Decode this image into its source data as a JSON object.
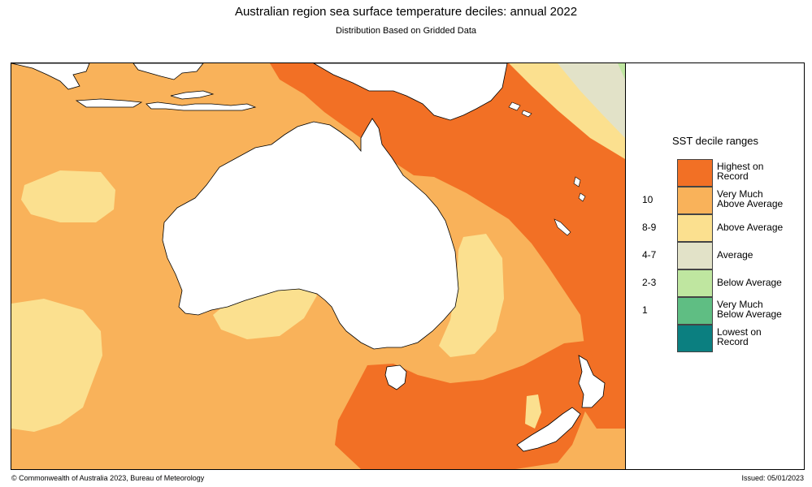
{
  "title": "Australian region sea surface temperature deciles:  annual 2022",
  "subtitle": "Distribution Based on Gridded Data",
  "legend": {
    "title": "SST decile ranges",
    "items": [
      {
        "num": "",
        "label_1": "Highest on",
        "label_2": "Record",
        "color": "#f27025"
      },
      {
        "num": "10",
        "label_1": "Very Much",
        "label_2": "Above Average",
        "color": "#f9b25a"
      },
      {
        "num": "8-9",
        "label_1": "Above Average",
        "label_2": "",
        "color": "#fbe08f"
      },
      {
        "num": "4-7",
        "label_1": "Average",
        "label_2": "",
        "color": "#e2e2c8"
      },
      {
        "num": "2-3",
        "label_1": "Below Average",
        "label_2": "",
        "color": "#bfe6a0"
      },
      {
        "num": "1",
        "label_1": "Very Much",
        "label_2": "Below Average",
        "color": "#5fbe83"
      },
      {
        "num": "",
        "label_1": "Lowest on",
        "label_2": "Record",
        "color": "#0b7f80"
      }
    ]
  },
  "footer": {
    "copyright": "© Commonwealth of Australia 2023, Bureau of Meteorology",
    "issued": "Issued: 05/01/2023"
  }
}
